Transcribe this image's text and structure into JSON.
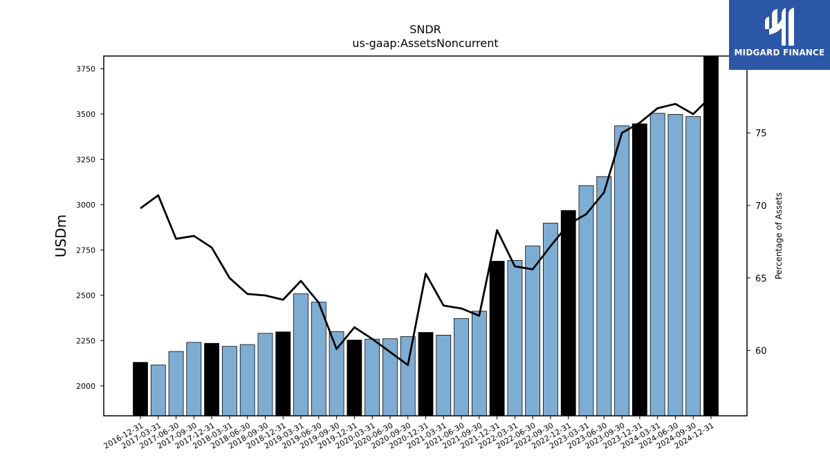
{
  "logo": {
    "text": "MIDGARD FINANCE",
    "color": "#2c56a8"
  },
  "chart_data": {
    "type": "bar",
    "title": "SNDR",
    "subtitle": "us-gaap:AssetsNoncurrent",
    "ylabel": "USDm",
    "y2label": "Percentage of Assets",
    "ylim": [
      1835,
      3820
    ],
    "y2lim": [
      55.5,
      80.3
    ],
    "yticks": [
      2000,
      2250,
      2500,
      2750,
      3000,
      3250,
      3500,
      3750
    ],
    "y2ticks": [
      60,
      65,
      70,
      75
    ],
    "categories": [
      "2016-12-31",
      "2017-03-31",
      "2017-06-30",
      "2017-09-30",
      "2017-12-31",
      "2018-03-31",
      "2018-06-30",
      "2018-09-30",
      "2018-12-31",
      "2019-03-31",
      "2019-06-30",
      "2019-09-30",
      "2019-12-31",
      "2020-03-31",
      "2020-06-30",
      "2020-09-30",
      "2020-12-31",
      "2021-03-31",
      "2021-06-30",
      "2021-09-30",
      "2021-12-31",
      "2022-03-31",
      "2022-06-30",
      "2022-09-30",
      "2022-12-31",
      "2023-03-31",
      "2023-06-30",
      "2023-09-30",
      "2023-12-31",
      "2024-03-31",
      "2024-06-30",
      "2024-09-30",
      "2024-12-31"
    ],
    "series": [
      {
        "type": "bar",
        "values": [
          2130,
          2115,
          2190,
          2240,
          2235,
          2218,
          2228,
          2290,
          2298,
          2508,
          2462,
          2300,
          2253,
          2258,
          2260,
          2272,
          2295,
          2280,
          2372,
          2412,
          2688,
          2692,
          2772,
          2898,
          2968,
          3105,
          3155,
          3435,
          3446,
          3504,
          3498,
          3486,
          3820
        ],
        "colors": {
          "year_end": "#000000",
          "quarter": "#7eadd3"
        }
      },
      {
        "type": "line",
        "axis": "right",
        "color": "#000000",
        "values": [
          69.8,
          70.7,
          67.7,
          67.9,
          67.1,
          65.0,
          63.9,
          63.8,
          63.5,
          64.8,
          63.3,
          60.1,
          61.6,
          60.8,
          59.9,
          59.0,
          65.3,
          63.1,
          62.9,
          62.4,
          68.3,
          65.8,
          65.6,
          67.2,
          68.7,
          69.4,
          70.9,
          75.0,
          75.7,
          76.7,
          77.0,
          76.3,
          77.5
        ]
      }
    ]
  }
}
